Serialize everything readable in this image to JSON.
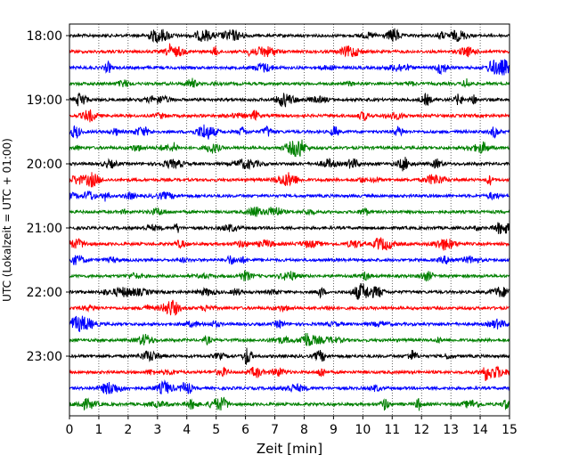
{
  "chart_data": {
    "type": "line",
    "title": "",
    "xlabel": "Zeit  [min]",
    "ylabel": "UTC (Lokalzeit = UTC + 01:00)",
    "xlim": [
      0,
      15
    ],
    "x_ticks": [
      0,
      1,
      2,
      3,
      4,
      5,
      6,
      7,
      8,
      9,
      10,
      11,
      12,
      13,
      14,
      15
    ],
    "y_tick_labels": [
      "18:00",
      "19:00",
      "20:00",
      "21:00",
      "22:00",
      "23:00"
    ],
    "grid": "vertical dotted lines at each minute",
    "trace_interval_minutes": 15,
    "trace_colors": [
      "#000000",
      "#ff0000",
      "#0000ff",
      "#008000"
    ],
    "series": [
      {
        "start": "18:00",
        "color": "#000000"
      },
      {
        "start": "18:15",
        "color": "#ff0000"
      },
      {
        "start": "18:30",
        "color": "#0000ff"
      },
      {
        "start": "18:45",
        "color": "#008000"
      },
      {
        "start": "19:00",
        "color": "#000000"
      },
      {
        "start": "19:15",
        "color": "#ff0000"
      },
      {
        "start": "19:30",
        "color": "#0000ff"
      },
      {
        "start": "19:45",
        "color": "#008000"
      },
      {
        "start": "20:00",
        "color": "#000000"
      },
      {
        "start": "20:15",
        "color": "#ff0000"
      },
      {
        "start": "20:30",
        "color": "#0000ff"
      },
      {
        "start": "20:45",
        "color": "#008000"
      },
      {
        "start": "21:00",
        "color": "#000000"
      },
      {
        "start": "21:15",
        "color": "#ff0000"
      },
      {
        "start": "21:30",
        "color": "#0000ff"
      },
      {
        "start": "21:45",
        "color": "#008000"
      },
      {
        "start": "22:00",
        "color": "#000000"
      },
      {
        "start": "22:15",
        "color": "#ff0000"
      },
      {
        "start": "22:30",
        "color": "#0000ff"
      },
      {
        "start": "22:45",
        "color": "#008000"
      },
      {
        "start": "23:00",
        "color": "#000000"
      },
      {
        "start": "23:15",
        "color": "#ff0000"
      },
      {
        "start": "23:30",
        "color": "#0000ff"
      },
      {
        "start": "23:45",
        "color": "#008000"
      }
    ]
  }
}
